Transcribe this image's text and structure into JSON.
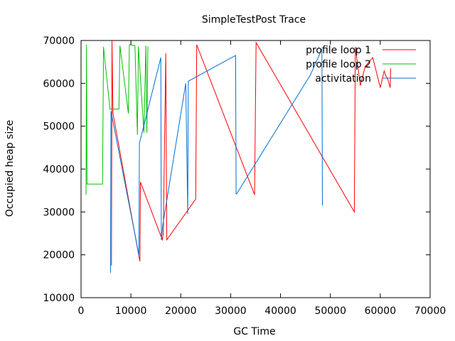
{
  "chart_data": {
    "type": "line",
    "title": "SimpleTestPost Trace",
    "xlabel": "GC Time",
    "ylabel": "Occupied heap size",
    "xlim": [
      0,
      70000
    ],
    "ylim": [
      10000,
      70000
    ],
    "xticks": [
      "0",
      "10000",
      "20000",
      "30000",
      "40000",
      "50000",
      "60000",
      "70000"
    ],
    "yticks": [
      "10000",
      "20000",
      "30000",
      "40000",
      "50000",
      "60000",
      "70000"
    ],
    "grid": false,
    "legend_position": "top-right",
    "series": [
      {
        "name": "profile loop 1",
        "color": "#ff0000",
        "points": [
          [
            6100,
            17500
          ],
          [
            6200,
            70000
          ],
          [
            6400,
            53000
          ],
          [
            11700,
            19000
          ],
          [
            11800,
            18500
          ],
          [
            11900,
            37000
          ],
          [
            16300,
            23500
          ],
          [
            16500,
            25000
          ],
          [
            17000,
            67000
          ],
          [
            17200,
            23500
          ],
          [
            23000,
            33000
          ],
          [
            23200,
            69000
          ],
          [
            34800,
            34000
          ],
          [
            35100,
            69500
          ],
          [
            54800,
            30000
          ],
          [
            55000,
            68500
          ],
          [
            56000,
            59500
          ],
          [
            57000,
            64000
          ],
          [
            58500,
            66000
          ],
          [
            60000,
            59000
          ],
          [
            60800,
            63000
          ],
          [
            61000,
            62000
          ],
          [
            61500,
            61000
          ],
          [
            62000,
            59000
          ],
          [
            62100,
            63500
          ]
        ]
      },
      {
        "name": "profile loop 2",
        "color": "#00c000",
        "points": [
          [
            1000,
            34000
          ],
          [
            1100,
            69000
          ],
          [
            1200,
            36500
          ],
          [
            4300,
            36500
          ],
          [
            4500,
            68500
          ],
          [
            5800,
            54000
          ],
          [
            7600,
            54000
          ],
          [
            7800,
            68800
          ],
          [
            9500,
            53000
          ],
          [
            9700,
            69000
          ],
          [
            10800,
            68800
          ],
          [
            11300,
            48000
          ],
          [
            11500,
            68600
          ],
          [
            12600,
            48500
          ],
          [
            13000,
            68800
          ],
          [
            13200,
            48500
          ],
          [
            13400,
            68600
          ]
        ]
      },
      {
        "name": "activitation",
        "color": "#0070d0",
        "points": [
          [
            5900,
            15800
          ],
          [
            6000,
            53500
          ],
          [
            11600,
            20000
          ],
          [
            11700,
            46000
          ],
          [
            16000,
            66000
          ],
          [
            16100,
            23500
          ],
          [
            16400,
            27000
          ],
          [
            21000,
            60000
          ],
          [
            21400,
            29500
          ],
          [
            21500,
            60500
          ],
          [
            31000,
            66500
          ],
          [
            31100,
            34200
          ],
          [
            31200,
            34200
          ],
          [
            46000,
            62000
          ],
          [
            48300,
            68000
          ],
          [
            48400,
            31500
          ]
        ]
      }
    ]
  }
}
